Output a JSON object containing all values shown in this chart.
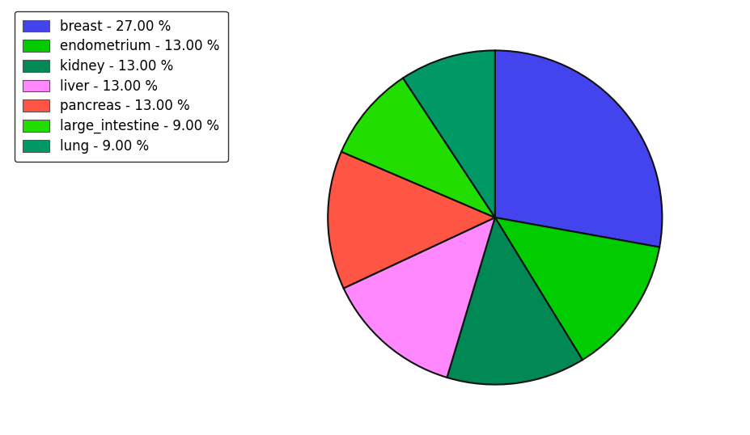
{
  "labels": [
    "breast",
    "endometrium",
    "kidney",
    "liver",
    "pancreas",
    "large_intestine",
    "lung"
  ],
  "values": [
    27.0,
    13.0,
    13.0,
    13.0,
    13.0,
    9.0,
    9.0
  ],
  "colors": [
    "#4444ee",
    "#00cc00",
    "#008855",
    "#ff88ff",
    "#ff5544",
    "#22dd00",
    "#009966"
  ],
  "legend_labels": [
    "breast - 27.00 %",
    "endometrium - 13.00 %",
    "kidney - 13.00 %",
    "liver - 13.00 %",
    "pancreas - 13.00 %",
    "large_intestine - 9.00 %",
    "lung - 9.00 %"
  ],
  "startangle": 90,
  "background_color": "#ffffff",
  "legend_fontsize": 12,
  "edgecolor": "#111111",
  "linewidth": 1.5,
  "figsize": [
    9.27,
    5.38
  ],
  "dpi": 100
}
